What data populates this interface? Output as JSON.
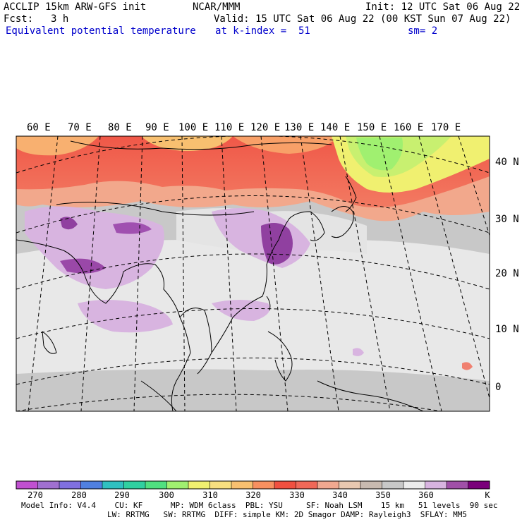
{
  "header": {
    "model": "ACCLIP 15km ARW-GFS init",
    "org": "NCAR/MMM",
    "init": "Init: 12 UTC Sat 06 Aug 22",
    "fcst_label": "Fcst:",
    "fcst_value": "3 h",
    "valid": "Valid: 15 UTC Sat 06 Aug 22 (00 KST Sun 07 Aug 22)",
    "field": "Equivalent potential temperature",
    "level": "at k-index =  51",
    "smooth": "sm= 2"
  },
  "map": {
    "lon_labels": [
      "60 E",
      "70 E",
      "80 E",
      "90 E",
      "100 E",
      "110 E",
      "120 E",
      "130 E",
      "140 E",
      "150 E",
      "160 E",
      "170 E"
    ],
    "lat_labels": [
      "40 N",
      "30 N",
      "20 N",
      "10 N",
      "0"
    ],
    "colors": {
      "background_gray": "#c8c8c8",
      "light_gray": "#e8e8e8",
      "red": "#f06048",
      "salmon": "#f4a080",
      "light_green": "#a0f070",
      "yellow": "#f0f070",
      "lavender": "#d8b4e0",
      "purple": "#9040a0"
    }
  },
  "colorbar": {
    "colors": [
      "#c050d0",
      "#a070d0",
      "#8070e0",
      "#5080e0",
      "#30c0c0",
      "#30d0a0",
      "#50e080",
      "#a0f070",
      "#f0f070",
      "#f8e080",
      "#f8c070",
      "#f89060",
      "#f05040",
      "#f06858",
      "#f0a890",
      "#e8c8b0",
      "#c8bab0",
      "#c8c8c8",
      "#ececec",
      "#d8b4e0",
      "#a050a8",
      "#7a007a"
    ],
    "labels": [
      "270",
      "280",
      "290",
      "300",
      "310",
      "320",
      "330",
      "340",
      "350",
      "360"
    ],
    "unit": "K"
  },
  "footer": {
    "line1": "Model Info: V4.4    CU: KF      MP: WDM 6class  PBL: YSU     SF: Noah LSM    15 km   51 levels  90 sec",
    "line2": "LW: RRTMG   SW: RRTMG  DIFF: simple KM: 2D Smagor DAMP: Rayleigh3  SFLAY: MM5"
  }
}
